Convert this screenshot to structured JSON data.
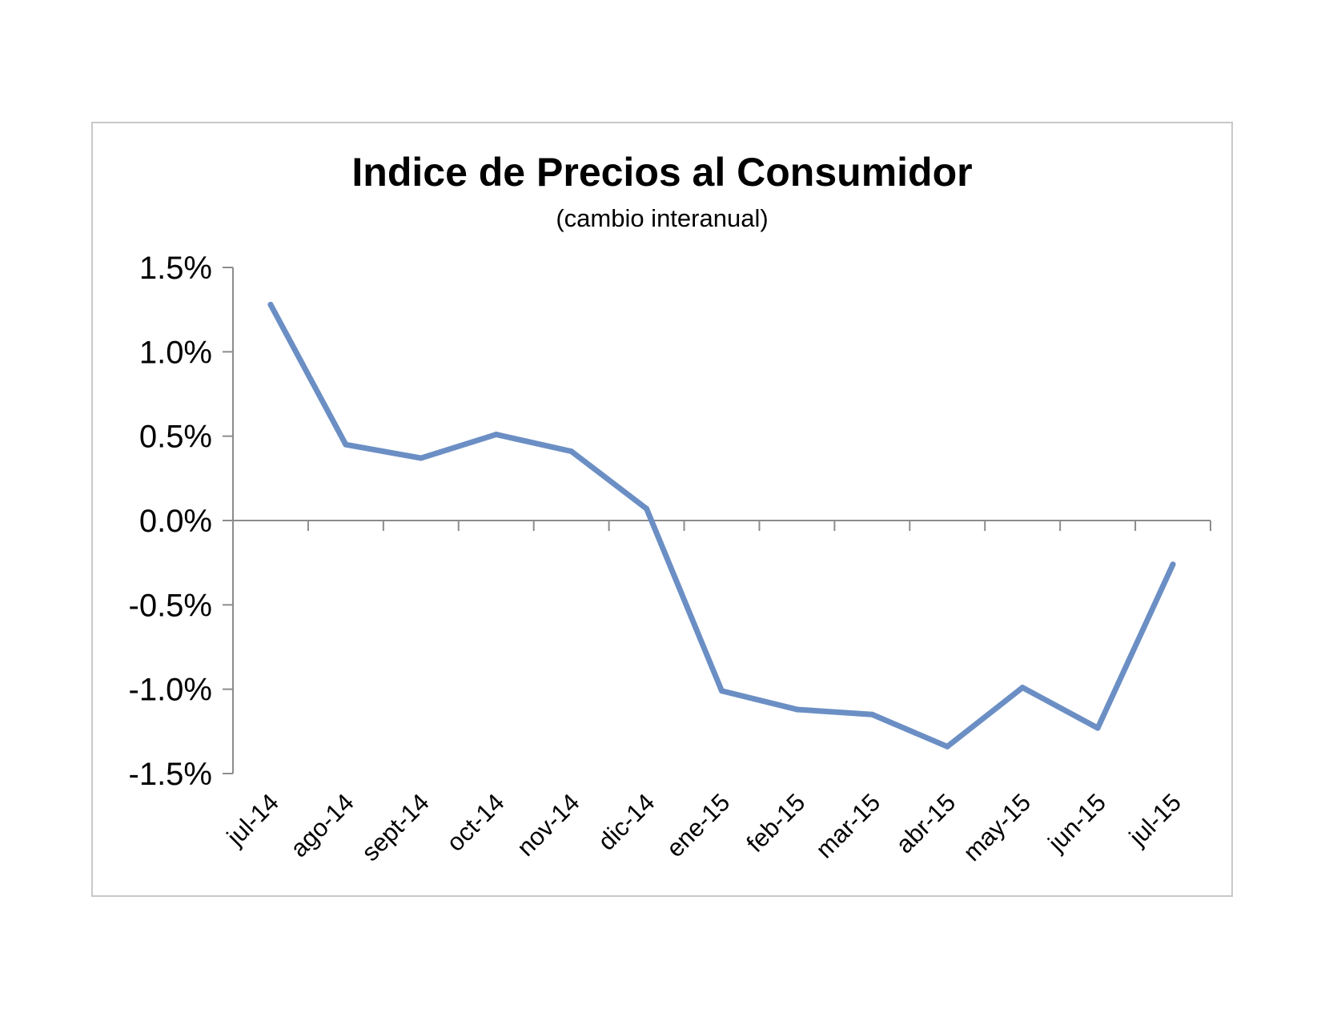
{
  "chart_data": {
    "type": "line",
    "title": "Indice de Precios al Consumidor",
    "subtitle": "(cambio interanual)",
    "categories": [
      "jul-14",
      "ago-14",
      "sept-14",
      "oct-14",
      "nov-14",
      "dic-14",
      "ene-15",
      "feb-15",
      "mar-15",
      "abr-15",
      "may-15",
      "jun-15",
      "jul-15"
    ],
    "series": [
      {
        "values": [
          1.28,
          0.45,
          0.37,
          0.51,
          0.41,
          0.07,
          -1.01,
          -1.12,
          -1.15,
          -1.34,
          -0.99,
          -1.23,
          -0.26
        ]
      }
    ],
    "ytick_values": [
      1.5,
      1.0,
      0.5,
      0.0,
      -0.5,
      -1.0,
      -1.5
    ],
    "ytick_labels": [
      "1.5%",
      "1.0%",
      "0.5%",
      "0.0%",
      "-0.5%",
      "-1.0%",
      "-1.5%"
    ],
    "ylim": [
      -1.5,
      1.5
    ],
    "grid": false,
    "legend": "none",
    "line_color": "#6b8fc4",
    "axis_color": "#8c8c8c"
  }
}
